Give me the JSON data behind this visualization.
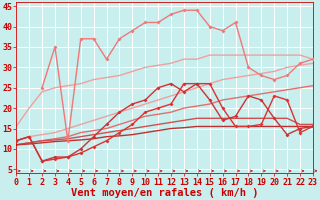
{
  "bg_color": "#c8eeee",
  "grid_color": "#b0dddd",
  "xlabel": "Vent moyen/en rafales ( km/h )",
  "xlim": [
    0,
    23
  ],
  "ylim": [
    4,
    46
  ],
  "yticks": [
    5,
    10,
    15,
    20,
    25,
    30,
    35,
    40,
    45
  ],
  "xticks": [
    0,
    1,
    2,
    3,
    4,
    5,
    6,
    7,
    8,
    9,
    10,
    11,
    12,
    13,
    14,
    15,
    16,
    17,
    18,
    19,
    20,
    21,
    22,
    23
  ],
  "lines": [
    {
      "x": [
        0,
        1,
        2,
        3,
        4,
        5,
        6,
        7,
        8,
        9,
        10,
        11,
        12,
        13,
        14,
        15,
        16,
        17,
        18,
        19,
        20,
        21,
        22,
        23
      ],
      "y": [
        15.5,
        20,
        24,
        25,
        25.5,
        26,
        27,
        27.5,
        28,
        29,
        30,
        30.5,
        31,
        32,
        32,
        33,
        33,
        33,
        33,
        33,
        33,
        33,
        33,
        32
      ],
      "color": "#f0a0a0",
      "lw": 1.0,
      "marker": null
    },
    {
      "x": [
        0,
        1,
        2,
        3,
        4,
        5,
        6,
        7,
        8,
        9,
        10,
        11,
        12,
        13,
        14,
        15,
        16,
        17,
        18,
        19,
        20,
        21,
        22,
        23
      ],
      "y": [
        12,
        13,
        13.5,
        14,
        15,
        16,
        17,
        18,
        19,
        20,
        21,
        22,
        23,
        24,
        25,
        26,
        27,
        27.5,
        28,
        28.5,
        29,
        30,
        30.5,
        31
      ],
      "color": "#f0a0a0",
      "lw": 1.0,
      "marker": null
    },
    {
      "x": [
        0,
        1,
        2,
        3,
        4,
        5,
        6,
        7,
        8,
        9,
        10,
        11,
        12,
        13,
        14,
        15,
        16,
        17,
        18,
        19,
        20,
        21,
        22,
        23
      ],
      "y": [
        11,
        11.5,
        12,
        12.5,
        13,
        14,
        14.5,
        15,
        16,
        17,
        18,
        18.5,
        19,
        20,
        20.5,
        21,
        22,
        22.5,
        23,
        23.5,
        24,
        24.5,
        25,
        25.5
      ],
      "color": "#e07070",
      "lw": 1.0,
      "marker": null
    },
    {
      "x": [
        0,
        1,
        2,
        3,
        4,
        5,
        6,
        7,
        8,
        9,
        10,
        11,
        12,
        13,
        14,
        15,
        16,
        17,
        18,
        19,
        20,
        21,
        22,
        23
      ],
      "y": [
        11,
        11.5,
        12,
        12.2,
        12.5,
        13,
        13.5,
        14,
        14.5,
        15,
        15.5,
        16,
        16.5,
        17,
        17.5,
        17.5,
        17.5,
        17.5,
        17.5,
        17.5,
        17.5,
        17.5,
        16,
        16
      ],
      "color": "#d05050",
      "lw": 1.0,
      "marker": null
    },
    {
      "x": [
        0,
        1,
        2,
        3,
        4,
        5,
        6,
        7,
        8,
        9,
        10,
        11,
        12,
        13,
        14,
        15,
        16,
        17,
        18,
        19,
        20,
        21,
        22,
        23
      ],
      "y": [
        11,
        11.2,
        11.5,
        11.8,
        12,
        12.2,
        12.5,
        13,
        13.2,
        13.5,
        14,
        14.5,
        15,
        15.2,
        15.5,
        15.5,
        15.5,
        15.5,
        15.5,
        15.5,
        15.5,
        15.5,
        15.5,
        15.5
      ],
      "color": "#c03030",
      "lw": 1.0,
      "marker": null
    },
    {
      "x": [
        0,
        1,
        2,
        3,
        4,
        5,
        6,
        7,
        8,
        9,
        10,
        11,
        12,
        13,
        14,
        15,
        16,
        17,
        18,
        19,
        20,
        21,
        22,
        23
      ],
      "y": [
        12,
        13,
        7,
        7.5,
        8,
        9,
        10.5,
        12,
        14,
        16,
        19,
        20,
        21,
        26,
        26,
        26,
        20,
        15.5,
        15.5,
        16,
        23,
        22,
        14,
        15.5
      ],
      "color": "#e03030",
      "lw": 1.0,
      "marker": "D",
      "ms": 2.0
    },
    {
      "x": [
        0,
        1,
        2,
        3,
        4,
        5,
        6,
        7,
        8,
        9,
        10,
        11,
        12,
        13,
        14,
        15,
        16,
        17,
        18,
        19,
        20,
        21,
        22,
        23
      ],
      "y": [
        12,
        13,
        7,
        8,
        8,
        10,
        13,
        16,
        19,
        21,
        22,
        25,
        26,
        24,
        26,
        22,
        17,
        18,
        23,
        22,
        17.5,
        13.5,
        15,
        15.5
      ],
      "color": "#cc3333",
      "lw": 1.0,
      "marker": "D",
      "ms": 2.0
    },
    {
      "x": [
        2,
        3,
        4,
        5,
        6,
        7,
        8,
        9,
        10,
        11,
        12,
        13,
        14,
        15,
        16,
        17,
        18,
        19,
        20,
        21,
        22,
        23
      ],
      "y": [
        25,
        35,
        12,
        37,
        37,
        32,
        37,
        39,
        41,
        41,
        43,
        44,
        44,
        40,
        39,
        41,
        30,
        28,
        27,
        28,
        31,
        32
      ],
      "color": "#f07878",
      "lw": 1.0,
      "marker": "D",
      "ms": 2.0
    }
  ],
  "xlabel_color": "#cc0000",
  "xlabel_fontsize": 7.5,
  "tick_color": "#cc0000",
  "tick_fontsize": 6,
  "arrow_color": "#cc0000"
}
